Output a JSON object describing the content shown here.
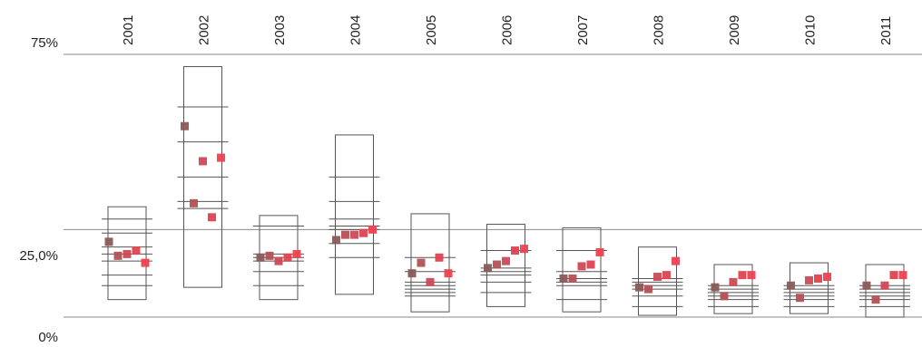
{
  "chart_data": {
    "type": "box-strip",
    "title": "",
    "xlabel": "",
    "ylabel": "",
    "ylim": [
      0,
      75
    ],
    "y_ticks": [
      {
        "value": 75,
        "label": "75%"
      },
      {
        "value": 25,
        "label": "25,0%"
      },
      {
        "value": 0,
        "label": "0%"
      }
    ],
    "reference_line": 25,
    "categories": [
      "2001",
      "2002",
      "2003",
      "2004",
      "2005",
      "2006",
      "2007",
      "2008",
      "2009",
      "2010",
      "2011"
    ],
    "colors": {
      "points": [
        "#8b5a5a",
        "#b45055",
        "#cc4a55",
        "#e0424f",
        "#f04050"
      ],
      "box_stroke": "#555555",
      "grid": "#8a8a8a"
    },
    "boxes": [
      {
        "year": "2001",
        "top": 31.5,
        "bottom": 5.0,
        "lines": [
          28,
          24,
          20,
          18,
          16,
          12,
          9
        ],
        "points": [
          21.5,
          17.5,
          18.0,
          19.0,
          15.5
        ]
      },
      {
        "year": "2002",
        "top": 71.5,
        "bottom": 8.5,
        "lines": [
          60,
          50,
          40,
          33,
          31
        ],
        "points": [
          54.5,
          32.5,
          44.5,
          28.5,
          45.5
        ]
      },
      {
        "year": "2003",
        "top": 29.0,
        "bottom": 5.0,
        "lines": [
          26,
          18,
          17,
          16,
          13,
          9
        ],
        "points": [
          17.0,
          17.5,
          16.0,
          17.0,
          18.0
        ]
      },
      {
        "year": "2004",
        "top": 52.0,
        "bottom": 6.5,
        "lines": [
          40,
          33,
          28,
          26,
          25,
          21,
          17
        ],
        "points": [
          22.0,
          23.5,
          23.5,
          24.0,
          25.0
        ]
      },
      {
        "year": "2005",
        "top": 29.5,
        "bottom": 1.5,
        "lines": [
          17,
          13,
          10,
          9,
          8,
          7,
          6
        ],
        "points": [
          12.5,
          15.5,
          10.0,
          17.0,
          12.5
        ]
      },
      {
        "year": "2006",
        "top": 26.5,
        "bottom": 3.0,
        "lines": [
          19,
          14,
          13,
          12,
          10,
          7
        ],
        "points": [
          14.0,
          15.0,
          16.0,
          19.0,
          19.5
        ]
      },
      {
        "year": "2007",
        "top": 25.5,
        "bottom": 1.5,
        "lines": [
          19,
          13,
          11,
          10,
          9,
          5
        ],
        "points": [
          11.0,
          11.0,
          14.5,
          15.0,
          18.5
        ]
      },
      {
        "year": "2008",
        "top": 20.0,
        "bottom": 0.5,
        "lines": [
          11,
          10,
          9,
          8,
          6,
          3
        ],
        "points": [
          8.5,
          8.0,
          11.5,
          12.0,
          16.0
        ]
      },
      {
        "year": "2009",
        "top": 15.0,
        "bottom": 1.0,
        "lines": [
          9,
          8,
          7,
          6,
          5,
          3
        ],
        "points": [
          8.5,
          6.0,
          10.0,
          12.0,
          12.0
        ]
      },
      {
        "year": "2010",
        "top": 15.5,
        "bottom": 1.0,
        "lines": [
          9,
          8,
          7,
          6,
          5,
          3
        ],
        "points": [
          9.0,
          5.5,
          10.5,
          11.0,
          11.5
        ]
      },
      {
        "year": "2011",
        "top": 15.0,
        "bottom": 0.0,
        "lines": [
          9,
          8,
          7,
          6,
          5,
          3
        ],
        "points": [
          9.0,
          5.0,
          9.0,
          12.0,
          12.0
        ]
      }
    ]
  }
}
